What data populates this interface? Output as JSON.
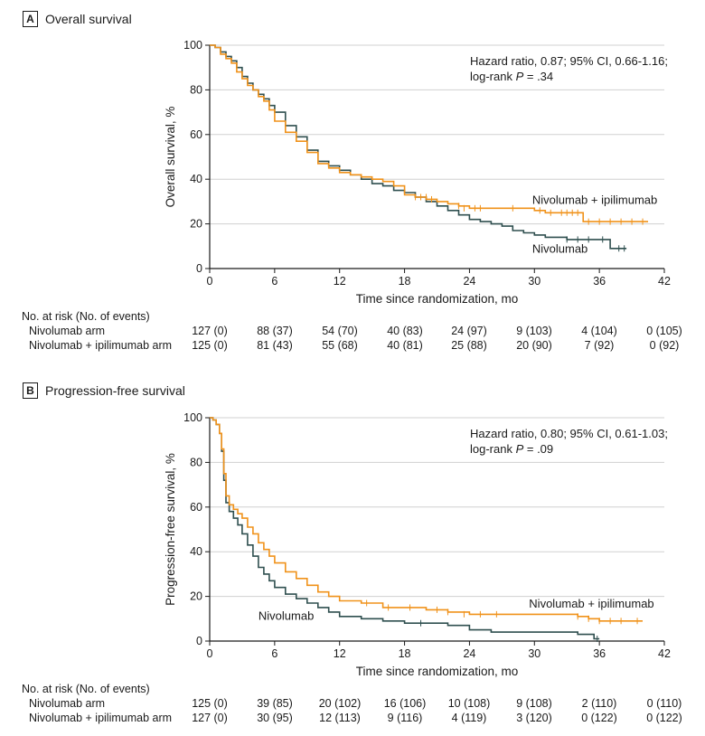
{
  "colors": {
    "nivolumab": "#2f4f4f",
    "combo": "#f0921a",
    "grid": "#d0d0d0",
    "axis": "#1a1a1a"
  },
  "chart_data": [
    {
      "panel": "A",
      "type": "line",
      "title": "Overall survival",
      "xlabel": "Time since randomization, mo",
      "ylabel": "Overall survival, %",
      "xlim": [
        0,
        42
      ],
      "ylim": [
        0,
        100
      ],
      "xticks": [
        "0",
        "6",
        "12",
        "18",
        "24",
        "30",
        "36",
        "42"
      ],
      "yticks": [
        "0",
        "20",
        "40",
        "60",
        "80",
        "100"
      ],
      "annotation": {
        "line1": "Hazard ratio, 0.87; 95% CI, 0.66-1.16;",
        "line2_prefix": "log-rank ",
        "line2_p": "P",
        "line2_suffix": " = .34"
      },
      "series": [
        {
          "name": "Nivolumab",
          "color_key": "nivolumab",
          "x": [
            0,
            0.5,
            1,
            1.5,
            2,
            2.5,
            3,
            3.5,
            4,
            4.5,
            5,
            5.5,
            6,
            7,
            8,
            9,
            10,
            11,
            12,
            13,
            14,
            15,
            16,
            17,
            18,
            19,
            20,
            21,
            22,
            23,
            24,
            25,
            26,
            27,
            28,
            29,
            30,
            31,
            32,
            33,
            34,
            35,
            36,
            37,
            37.5,
            38.5
          ],
          "y": [
            100,
            99,
            97,
            95,
            93,
            90,
            86,
            83,
            80,
            78,
            76,
            73,
            70,
            64,
            59,
            53,
            48,
            46,
            44,
            42,
            40,
            38,
            37,
            35,
            34,
            32,
            30,
            28,
            26,
            24,
            22,
            21,
            20,
            19,
            17,
            16,
            15,
            14,
            14,
            13,
            13,
            13,
            13,
            9,
            9,
            9
          ],
          "censors": [
            [
              33,
              13
            ],
            [
              34,
              13
            ],
            [
              35,
              13
            ],
            [
              36.3,
              13
            ],
            [
              37.8,
              9
            ],
            [
              38.3,
              9
            ]
          ]
        },
        {
          "name": "Nivolumab + ipilimumab",
          "color_key": "combo",
          "x": [
            0,
            0.5,
            1,
            1.5,
            2,
            2.5,
            3,
            3.5,
            4,
            4.5,
            5,
            5.5,
            6,
            7,
            8,
            9,
            10,
            11,
            12,
            13,
            14,
            15,
            16,
            17,
            18,
            19,
            20,
            21,
            22,
            23,
            24,
            25,
            26,
            27,
            28,
            29,
            30,
            31,
            32,
            33,
            34,
            34.5,
            35,
            36,
            37,
            38,
            39,
            40.5
          ],
          "y": [
            100,
            99,
            96,
            94,
            92,
            88,
            85,
            82,
            80,
            77,
            75,
            71,
            66,
            61,
            57,
            52,
            47,
            45,
            43,
            42,
            41,
            40,
            39,
            37,
            33,
            32,
            31,
            30,
            29,
            28,
            27,
            27,
            27,
            27,
            27,
            27,
            26,
            25,
            25,
            25,
            25,
            21,
            21,
            21,
            21,
            21,
            21,
            21
          ],
          "censors": [
            [
              19,
              32
            ],
            [
              19.5,
              32
            ],
            [
              20,
              32
            ],
            [
              20.5,
              31
            ],
            [
              23,
              28
            ],
            [
              23.5,
              27
            ],
            [
              24.5,
              27
            ],
            [
              25,
              27
            ],
            [
              28,
              27
            ],
            [
              30.5,
              26
            ],
            [
              31.5,
              25
            ],
            [
              32.5,
              25
            ],
            [
              33,
              25
            ],
            [
              33.5,
              25
            ],
            [
              34,
              25
            ],
            [
              35,
              21
            ],
            [
              36,
              21
            ],
            [
              37,
              21
            ],
            [
              38,
              21
            ],
            [
              39,
              21
            ],
            [
              40,
              21
            ]
          ]
        }
      ],
      "curve_labels": [
        {
          "text": "Nivolumab + ipilimumab",
          "x": 29.8,
          "y": 29,
          "anchor": "start"
        },
        {
          "text": "Nivolumab",
          "x": 29.8,
          "y": 7,
          "anchor": "start"
        }
      ],
      "risk_table": {
        "title": "No. at risk (No. of events)",
        "rows": [
          {
            "label": "Nivolumab arm",
            "values": [
              "127 (0)",
              "88 (37)",
              "54 (70)",
              "40 (83)",
              "24 (97)",
              "9 (103)",
              "4 (104)",
              "0 (105)"
            ]
          },
          {
            "label": "Nivolumab + ipilimumab arm",
            "values": [
              "125 (0)",
              "81 (43)",
              "55 (68)",
              "40 (81)",
              "25 (88)",
              "20 (90)",
              "7 (92)",
              "0 (92)"
            ]
          }
        ]
      }
    },
    {
      "panel": "B",
      "type": "line",
      "title": "Progression-free survival",
      "xlabel": "Time since randomization, mo",
      "ylabel": "Progression-free survival, %",
      "xlim": [
        0,
        42
      ],
      "ylim": [
        0,
        100
      ],
      "xticks": [
        "0",
        "6",
        "12",
        "18",
        "24",
        "30",
        "36",
        "42"
      ],
      "yticks": [
        "0",
        "20",
        "40",
        "60",
        "80",
        "100"
      ],
      "annotation": {
        "line1": "Hazard ratio, 0.80; 95% CI, 0.61-1.03;",
        "line2_prefix": "log-rank ",
        "line2_p": "P",
        "line2_suffix": " = .09"
      },
      "series": [
        {
          "name": "Nivolumab",
          "color_key": "nivolumab",
          "x": [
            0,
            0.3,
            0.6,
            0.9,
            1.1,
            1.3,
            1.5,
            1.8,
            2.2,
            2.6,
            3,
            3.5,
            4,
            4.5,
            5,
            5.5,
            6,
            7,
            8,
            9,
            10,
            11,
            12,
            14,
            16,
            18,
            20,
            22,
            24,
            26,
            28,
            30,
            32,
            34,
            35,
            35.5,
            36
          ],
          "y": [
            100,
            99,
            97,
            93,
            85,
            72,
            62,
            58,
            55,
            52,
            48,
            43,
            38,
            33,
            30,
            27,
            24,
            21,
            19,
            17,
            15,
            13,
            11,
            10,
            9,
            8,
            8,
            7,
            5,
            4,
            4,
            4,
            4,
            3,
            3,
            1,
            1
          ],
          "censors": [
            [
              19.5,
              8
            ],
            [
              35.8,
              1
            ]
          ]
        },
        {
          "name": "Nivolumab + ipilimumab",
          "color_key": "combo",
          "x": [
            0,
            0.3,
            0.6,
            0.9,
            1.1,
            1.3,
            1.5,
            1.8,
            2.2,
            2.6,
            3,
            3.5,
            4,
            4.5,
            5,
            5.5,
            6,
            7,
            8,
            9,
            10,
            11,
            12,
            14,
            16,
            18,
            20,
            22,
            24,
            26,
            28,
            30,
            32,
            34,
            35,
            36,
            38,
            40
          ],
          "y": [
            100,
            99,
            97,
            93,
            86,
            75,
            65,
            61,
            59,
            57,
            55,
            51,
            48,
            44,
            41,
            38,
            35,
            31,
            28,
            25,
            22,
            20,
            18,
            17,
            15,
            15,
            14,
            13,
            12,
            12,
            12,
            12,
            12,
            11,
            10,
            9,
            9,
            9
          ],
          "censors": [
            [
              14.5,
              17
            ],
            [
              16.5,
              15
            ],
            [
              18.5,
              15
            ],
            [
              21,
              14
            ],
            [
              22,
              13
            ],
            [
              23.5,
              12
            ],
            [
              25,
              12
            ],
            [
              26.5,
              12
            ],
            [
              34,
              11
            ],
            [
              35,
              10
            ],
            [
              36,
              9
            ],
            [
              37,
              9
            ],
            [
              38,
              9
            ],
            [
              39.5,
              9
            ]
          ]
        }
      ],
      "curve_labels": [
        {
          "text": "Nivolumab + ipilimumab",
          "x": 29.5,
          "y": 15,
          "anchor": "start"
        },
        {
          "text": "Nivolumab",
          "x": 4.5,
          "y": 9.5,
          "anchor": "start"
        }
      ],
      "risk_table": {
        "title": "No. at risk (No. of events)",
        "rows": [
          {
            "label": "Nivolumab arm",
            "values": [
              "125 (0)",
              "39 (85)",
              "20 (102)",
              "16 (106)",
              "10 (108)",
              "9 (108)",
              "2 (110)",
              "0 (110)"
            ]
          },
          {
            "label": "Nivolumab + ipilimumab arm",
            "values": [
              "127 (0)",
              "30 (95)",
              "12 (113)",
              "9 (116)",
              "4 (119)",
              "3 (120)",
              "0 (122)",
              "0 (122)"
            ]
          }
        ]
      }
    }
  ]
}
